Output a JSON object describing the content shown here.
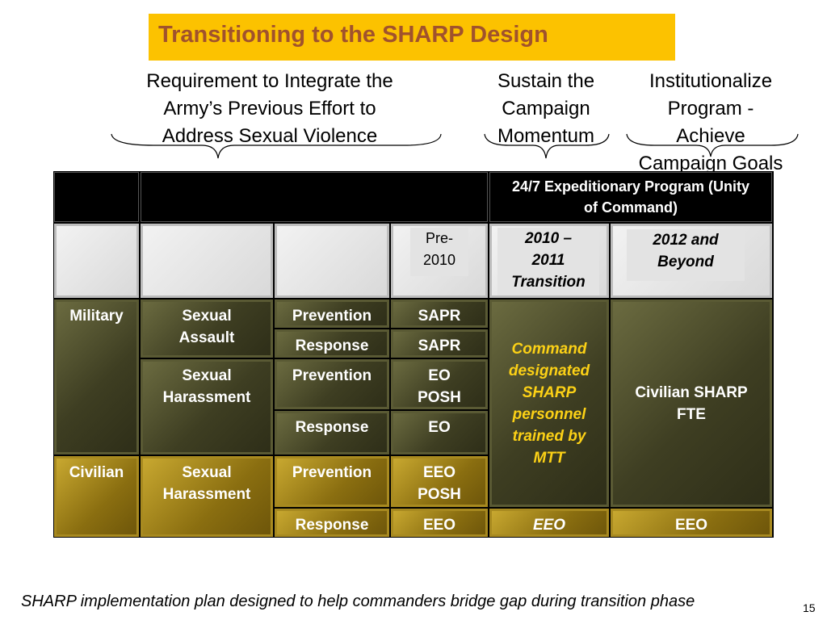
{
  "title": "Transitioning to the SHARP Design",
  "headings": {
    "requirement": [
      "Requirement to Integrate the",
      "Army’s Previous Effort to",
      "Address Sexual Violence"
    ],
    "sustain": [
      "Sustain the",
      "Campaign",
      "Momentum"
    ],
    "institutionalize": [
      "Institutionalize",
      "Program -",
      "Achieve",
      "Campaign Goals"
    ]
  },
  "table": {
    "program_header": "24/7 Expeditionary Program (Unity of Command)",
    "phases": {
      "pre": "Pre-2010",
      "transition": "2010 – 2011 Transition",
      "beyond": "2012 and Beyond"
    },
    "rows": {
      "military": "Military",
      "civilian": "Civilian",
      "sexual_assault": "Sexual Assault",
      "sexual_harassment_mil": "Sexual Harassment",
      "sexual_harassment_civ": "Sexual Harassment",
      "prevention": "Prevention",
      "response": "Response",
      "sapr_1": "SAPR",
      "sapr_2": "SAPR",
      "eo_posh": "EO POSH",
      "eo": "EO",
      "eeo_posh": "EEO POSH",
      "eeo": "EEO",
      "transition_content": "Command designated SHARP personnel trained by MTT",
      "beyond_content": "Civilian SHARP FTE",
      "transition_eeo": "EEO",
      "beyond_eeo": "EEO"
    }
  },
  "footer": "SHARP implementation plan designed to help commanders bridge gap during transition phase",
  "page_number": "15",
  "colors": {
    "title_bg": "#fcc200",
    "title_text": "#a0522d",
    "dark_cell": "#3e3e22",
    "gold_cell": "#8a6e10"
  }
}
